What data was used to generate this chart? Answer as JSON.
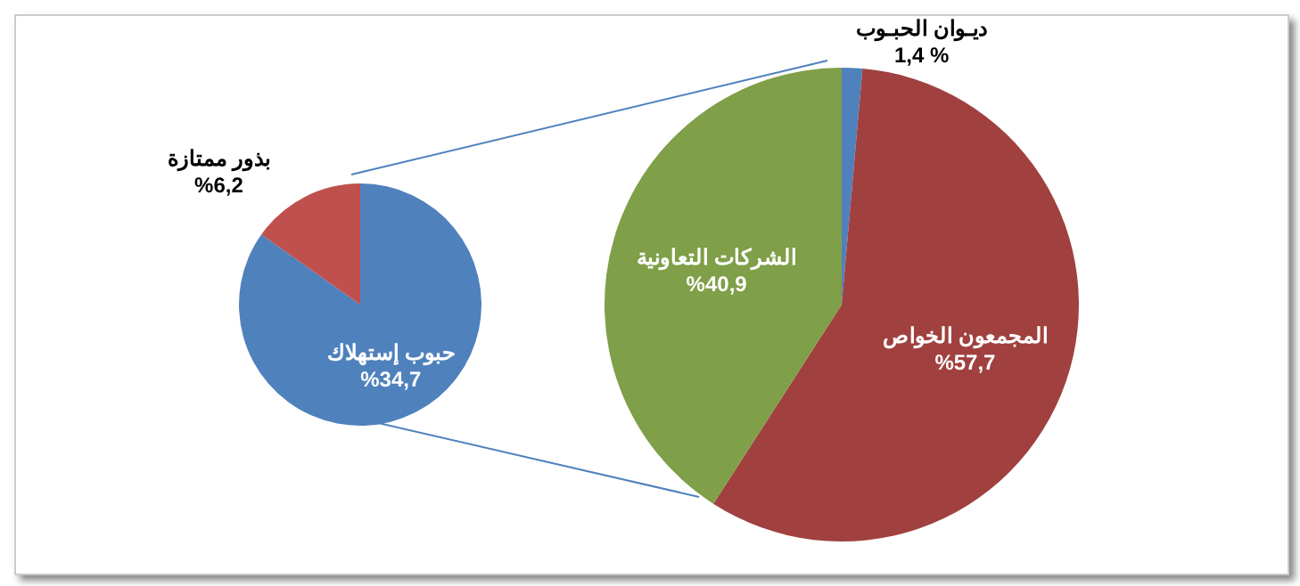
{
  "chart_data": [
    {
      "type": "pie",
      "categories": [
        "حبوب إستهلاك",
        "بذور ممتازة"
      ],
      "values": [
        34.7,
        6.2
      ],
      "colors": [
        "#4f81bd",
        "#c0504d"
      ],
      "value_labels": [
        "%34,7",
        "%6,2"
      ]
    },
    {
      "type": "pie",
      "categories": [
        "ديـوان الحبـوب",
        "المجمعون الخواص",
        "الشركات التعاونية"
      ],
      "values": [
        1.4,
        57.7,
        40.9
      ],
      "colors": [
        "#4f81bd",
        "#a0413f",
        "#7f9f48"
      ],
      "value_labels": [
        "1,4 %",
        "%57,7",
        "%40,9"
      ]
    }
  ]
}
